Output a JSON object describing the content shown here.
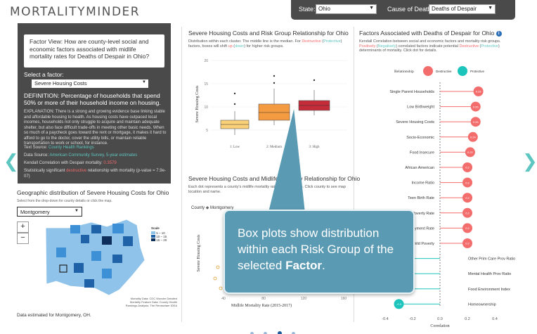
{
  "app": {
    "logo_text": "MORTALITYMINDER"
  },
  "topbar": {
    "state_label": "State:",
    "state_value": "Ohio",
    "cause_label": "Cause of Death:",
    "cause_value": "Deaths of Despair"
  },
  "factor_view": {
    "question": "Factor View: How are county-level social and economic factors associated with midlife mortality rates for Deaths of Despair in Ohio?",
    "select_label": "Select a factor:",
    "select_value": "Severe Housing Costs",
    "definition": "DEFINITION: Percentage of households that spend 50% or more of their household income on housing.",
    "explanation": "EXPLANATION: There is a strong and growing evidence base linking stable and affordable housing to health. As housing costs have outpaced local incomes, households not only struggle to acquire and maintain adequate shelter, but also face difficult trade-offs in meeting other basic needs. When so much of a paycheck goes toward the rent or mortgage, it makes it hard to afford to go to the doctor, cover the utility bills, or maintain reliable transportation to work or school, for instance.",
    "text_source_label": "Text Source:",
    "text_source_value": "County Health Rankings",
    "data_source_label": "Data Source:",
    "data_source_value": "American Community Survey, 5-year estimates",
    "kendall_label": "Kendall Correlation with Despair mortality:",
    "kendall_value": "0.3579",
    "sig_pre": "Statistically significant",
    "sig_word": "destructive",
    "sig_post": "relationship with mortality (p-value = 7.9e-07)"
  },
  "geo": {
    "title": "Geographic distribution of Severe Housing Costs for Ohio",
    "subtitle": "Select from the drop-down for county details or click the map.",
    "county_value": "Montgomery",
    "zoom_in": "+",
    "zoom_out": "−",
    "legend_title": "Scale",
    "legend_items": [
      "5 – 10",
      "10 – 15",
      "15 – 20"
    ],
    "credit": "Mortality Data: CDC Wonder Detailed Mortality Feature Data: County Health Rankings Analysis: The Rensselaer IDEA",
    "note": "Data estimated for Montgomery, OH."
  },
  "boxplot": {
    "title": "Severe Housing Costs and Risk Group Relationship for Ohio",
    "sub_1": "Distribution within each cluster. The middle line is the median. For",
    "sub_destr": "Destructive",
    "sub_open": "(",
    "sub_prot": "Protective",
    "sub_2": ") factors, boxes will shift",
    "sub_up": "up",
    "sub_down": "down",
    "sub_3": ") for higher risk groups.",
    "ylabel": "Severe Housing Costs",
    "yticks": [
      "20",
      "15",
      "10",
      "5"
    ],
    "xticks": [
      "1: Low",
      "2: Medium",
      "3: High"
    ]
  },
  "scatter": {
    "title": "Severe Housing Costs and Midlife Mortality Relationship for Ohio",
    "subtitle": "Each dot represents a county's midlife mortality rate and risk group. Click county to see map location and name.",
    "legend_label": "County",
    "legend_item": "Montgomery",
    "ylabel": "Severe Housing Costs",
    "xlabel": "Midlife Mortality Rate (2015-2017)",
    "xticks": [
      "40",
      "80",
      "120",
      "160"
    ]
  },
  "factors": {
    "title": "Factors Associated with Deaths of Despair for Ohio",
    "info": "i",
    "sub_1": "Kendall Correlation between social and economic factors and mortality risk groups.",
    "sub_pos": "Positively",
    "sub_neg": "Negatively",
    "sub_2": ") correlated factors indicate potential",
    "sub_destr": "Destructive",
    "sub_prot": "Protective",
    "sub_3": ") determinants of mortality. Click dot for details.",
    "legend_label": "Relationship",
    "legend_destructive": "Destructive",
    "legend_protective": "Protective",
    "xlabel": "Correlation",
    "xticks": [
      "-0.4",
      "-0.2",
      "0.0",
      "0.2",
      "0.4"
    ],
    "colors": {
      "destructive": "#f46d6d",
      "protective": "#1cc4bc"
    },
    "rows": [
      {
        "name": "Single Parent Households",
        "value": 0.28,
        "label": "0.28"
      },
      {
        "name": "Low Birthweight",
        "value": 0.26,
        "label": "0.26"
      },
      {
        "name": "Severe Housing Costs",
        "value": 0.26,
        "label": "0.26"
      },
      {
        "name": "Socio-Economic",
        "value": 0.24,
        "label": "0.24"
      },
      {
        "name": "Food Insecure",
        "value": 0.22,
        "label": "0.22"
      },
      {
        "name": "African American",
        "value": 0.2,
        "label": "0.2"
      },
      {
        "name": "Income Ratio",
        "value": 0.2,
        "label": "0.2"
      },
      {
        "name": "Teen Birth Rate",
        "value": 0.2,
        "label": "0.2"
      },
      {
        "name": "Poverty Rate",
        "value": 0.2,
        "label": "0.2"
      },
      {
        "name": "Unemployment Rate",
        "value": 0.2,
        "label": "0.2"
      },
      {
        "name": "Child Poverty",
        "value": 0.2,
        "label": "0.2"
      },
      {
        "name": "Other Prim Care Prov Ratio",
        "value": -0.26,
        "label": "-0.26"
      },
      {
        "name": "Mental Health Prov Ratio",
        "value": -0.27,
        "label": "-0.27"
      },
      {
        "name": "Food Environment Index",
        "value": -0.28,
        "label": "-0.28"
      },
      {
        "name": "Homeownership",
        "value": -0.3,
        "label": "-0.3"
      }
    ]
  },
  "callout": {
    "text_pre": "Box plots show distribution within each Risk Group of the selected",
    "text_bold": "Factor",
    "text_post": "."
  },
  "nav": {
    "prev_arrow": "❮",
    "next_arrow": "❯"
  }
}
